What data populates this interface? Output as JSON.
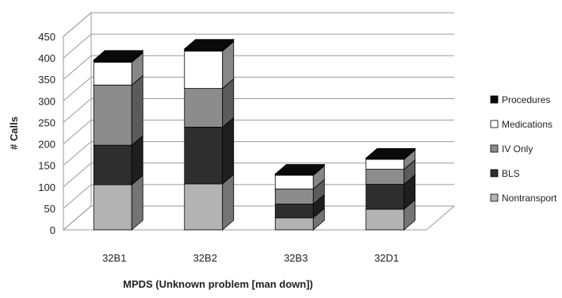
{
  "chart_data": {
    "type": "bar",
    "stacked": true,
    "three_d": true,
    "title": "",
    "xlabel": "MPDS (Unknown problem [man down])",
    "ylabel": "# Calls",
    "ylim": [
      0,
      450
    ],
    "yticks": [
      0,
      50,
      100,
      150,
      200,
      250,
      300,
      350,
      400,
      450
    ],
    "grid": true,
    "legend_position": "right",
    "categories": [
      "32B1",
      "32B2",
      "32B3",
      "32D1"
    ],
    "series": [
      {
        "name": "Nontransport",
        "color": "#b3b3b3",
        "values": [
          105,
          107,
          28,
          48
        ]
      },
      {
        "name": "BLS",
        "color": "#2e2e2e",
        "values": [
          92,
          132,
          32,
          58
        ]
      },
      {
        "name": "IV Only",
        "color": "#8c8c8c",
        "values": [
          140,
          90,
          35,
          35
        ]
      },
      {
        "name": "Medications",
        "color": "#ffffff",
        "values": [
          53,
          87,
          32,
          23
        ]
      },
      {
        "name": "Procedures",
        "color": "#0a0a0a",
        "values": [
          5,
          5,
          3,
          3
        ]
      }
    ]
  }
}
